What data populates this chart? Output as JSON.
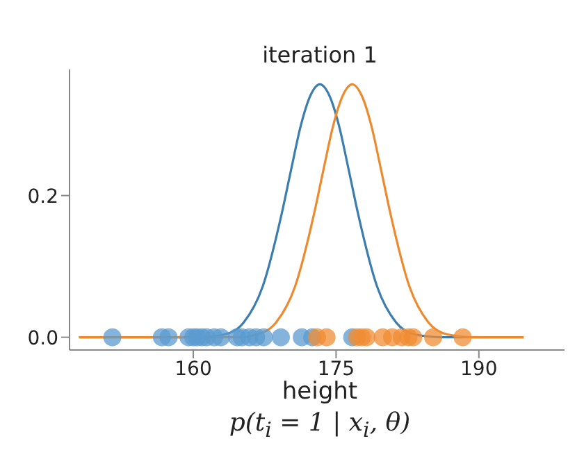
{
  "chart_data": {
    "type": "line",
    "title": "iteration 1",
    "xlabel": "height",
    "annotations": [
      "p(t$_{i}$ = 1 | x$_{i}$, θ)"
    ],
    "xlim": [
      147,
      199
    ],
    "ylim": [
      -0.018,
      0.378
    ],
    "xticks": [
      160,
      175,
      190
    ],
    "yticks": [
      {
        "value": 0,
        "label": "0.0"
      },
      0.2
    ],
    "grid": false,
    "legend": false,
    "series": [
      {
        "color": "#3b7dae",
        "x": [
          148,
          161,
          163.3,
          165.3,
          167.3,
          169.3,
          170.3,
          171.3,
          172.3,
          173.3,
          174.3,
          175.3,
          176.3,
          177.3,
          179.3,
          181.3,
          183.3,
          186,
          194.7
        ],
        "values": [
          0,
          0,
          0.004,
          0.021,
          0.072,
          0.175,
          0.238,
          0.299,
          0.341,
          0.357,
          0.341,
          0.299,
          0.238,
          0.175,
          0.072,
          0.021,
          0.004,
          0,
          0
        ]
      },
      {
        "color": "#ee8a2e",
        "x": [
          148,
          164.7,
          166.7,
          168.7,
          170.7,
          172.7,
          173.7,
          174.7,
          175.7,
          176.7,
          177.7,
          178.7,
          179.7,
          180.7,
          182.7,
          184.7,
          186.7,
          189.5,
          194.7
        ],
        "values": [
          0,
          0,
          0.004,
          0.021,
          0.072,
          0.175,
          0.238,
          0.299,
          0.341,
          0.357,
          0.341,
          0.299,
          0.238,
          0.175,
          0.072,
          0.021,
          0.004,
          0,
          0
        ]
      },
      {
        "type": "scatter",
        "marker": "circle",
        "color": "#5b9bcf",
        "x": [
          151.5,
          156.7,
          157.4,
          159.5,
          160,
          160.4,
          160.9,
          161.4,
          162.2,
          162.9,
          164.6,
          165.1,
          165.9,
          166.6,
          167.4,
          169.2,
          171.4,
          172.5,
          176.7
        ],
        "values": [
          0,
          0,
          0,
          0,
          0,
          0,
          0,
          0,
          0,
          0,
          0,
          0,
          0,
          0,
          0,
          0,
          0,
          0,
          0
        ]
      },
      {
        "type": "scatter",
        "marker": "circle",
        "color": "#f08c33",
        "x": [
          173,
          174,
          177.2,
          177.7,
          178.2,
          179.9,
          180.9,
          181.9,
          182.6,
          183.1,
          185.2,
          188.3
        ],
        "values": [
          0,
          0,
          0,
          0,
          0,
          0,
          0,
          0,
          0,
          0,
          0,
          0
        ]
      }
    ]
  }
}
